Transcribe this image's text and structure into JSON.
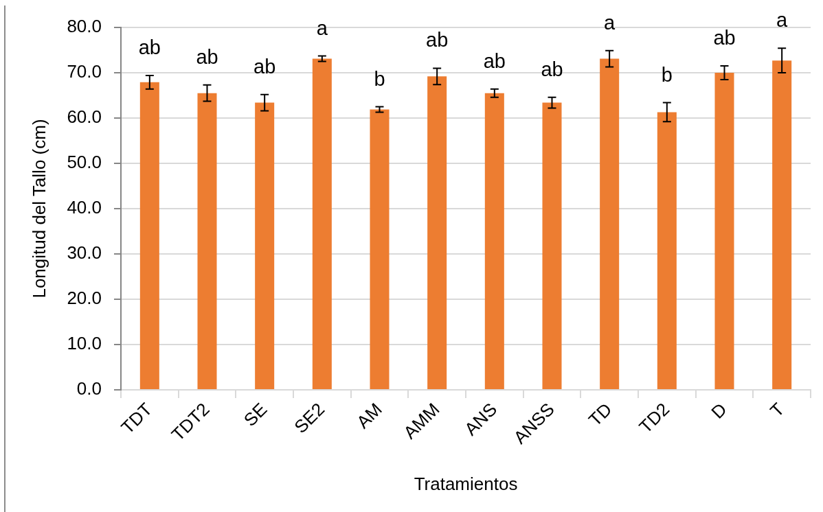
{
  "chart_data": {
    "type": "bar",
    "xlabel": "Tratamientos",
    "ylabel": "Longitud del Tallo (cm)",
    "categories": [
      "TDT",
      "TDT2",
      "SE",
      "SE2",
      "AM",
      "AMM",
      "ANS",
      "ANSS",
      "TD",
      "TD2",
      "D",
      "T"
    ],
    "values": [
      67.9,
      65.5,
      63.4,
      73.1,
      61.9,
      69.2,
      65.5,
      63.4,
      73.1,
      61.3,
      70.0,
      72.7
    ],
    "errors": [
      1.5,
      1.8,
      1.8,
      0.6,
      0.6,
      1.8,
      0.9,
      1.2,
      1.8,
      2.1,
      1.5,
      2.7
    ],
    "color": "#ed7d31",
    "ylim": [
      0,
      80
    ],
    "yticks": [
      {
        "value": 0,
        "label": "0.0"
      },
      {
        "value": 10,
        "label": "10.0"
      },
      {
        "value": 20,
        "label": "20.0"
      },
      {
        "value": 30,
        "label": "30.0"
      },
      {
        "value": 40,
        "label": "40.0"
      },
      {
        "value": 50,
        "label": "50.0"
      },
      {
        "value": 60,
        "label": "60.0"
      },
      {
        "value": 70,
        "label": "70.0"
      },
      {
        "value": 80,
        "label": "80.0"
      }
    ],
    "grid": "y",
    "annotations": [
      "ab",
      "ab",
      "ab",
      "a",
      "b",
      "ab",
      "ab",
      "ab",
      "a",
      "b",
      "ab",
      "a"
    ]
  }
}
